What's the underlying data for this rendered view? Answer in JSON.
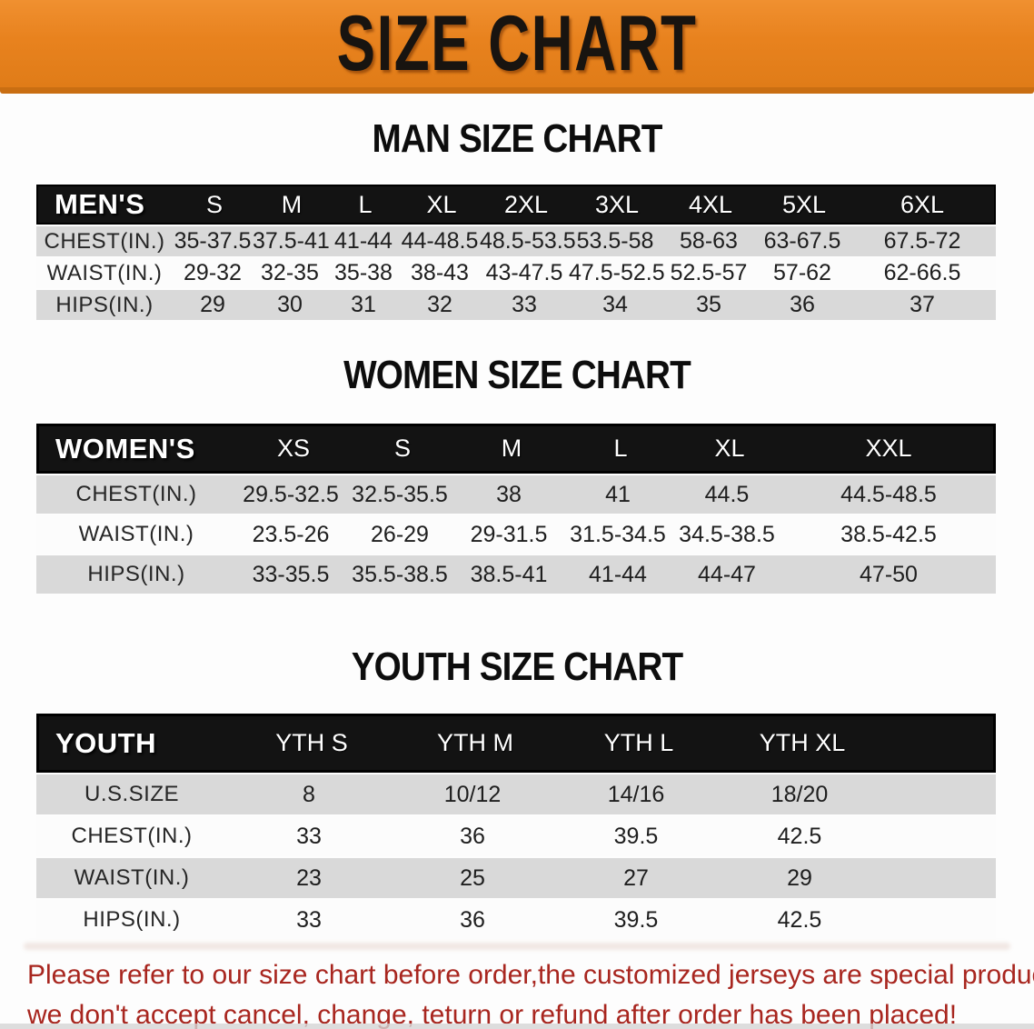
{
  "banner": {
    "title": "SIZE CHART"
  },
  "chart_data": [
    {
      "type": "table",
      "title": "MAN SIZE CHART",
      "header": [
        "MEN'S",
        "S",
        "M",
        "L",
        "XL",
        "2XL",
        "3XL",
        "4XL",
        "5XL",
        "6XL"
      ],
      "rows": [
        [
          "CHEST(IN.)",
          "35-37.5",
          "37.5-41",
          "41-44",
          "44-48.5",
          "48.5-53.5",
          "53.5-58",
          "58-63",
          "63-67.5",
          "67.5-72"
        ],
        [
          "WAIST(IN.)",
          "29-32",
          "32-35",
          "35-38",
          "38-43",
          "43-47.5",
          "47.5-52.5",
          "52.5-57",
          "57-62",
          "62-66.5"
        ],
        [
          "HIPS(IN.)",
          "29",
          "30",
          "31",
          "32",
          "33",
          "34",
          "35",
          "36",
          "37"
        ]
      ]
    },
    {
      "type": "table",
      "title": "WOMEN SIZE CHART",
      "header": [
        "WOMEN'S",
        "XS",
        "S",
        "M",
        "L",
        "XL",
        "XXL"
      ],
      "rows": [
        [
          "CHEST(IN.)",
          "29.5-32.5",
          "32.5-35.5",
          "38",
          "41",
          "44.5",
          "44.5-48.5"
        ],
        [
          "WAIST(IN.)",
          "23.5-26",
          "26-29",
          "29-31.5",
          "31.5-34.5",
          "34.5-38.5",
          "38.5-42.5"
        ],
        [
          "HIPS(IN.)",
          "33-35.5",
          "35.5-38.5",
          "38.5-41",
          "41-44",
          "44-47",
          "47-50"
        ]
      ]
    },
    {
      "type": "table",
      "title": "YOUTH SIZE CHART",
      "header": [
        "YOUTH",
        "YTH S",
        "YTH M",
        "YTH L",
        "YTH XL"
      ],
      "rows": [
        [
          "U.S.SIZE",
          "8",
          "10/12",
          "14/16",
          "18/20"
        ],
        [
          "CHEST(IN.)",
          "33",
          "36",
          "39.5",
          "42.5"
        ],
        [
          "WAIST(IN.)",
          "23",
          "25",
          "27",
          "29"
        ],
        [
          "HIPS(IN.)",
          "33",
          "36",
          "39.5",
          "42.5"
        ]
      ]
    }
  ],
  "disclaimer": {
    "line1": "Please refer to our size chart before order,the customized jerseys are special products,",
    "line2": "we don't accept cancel, change, teturn or refund after order has been placed!"
  },
  "colors": {
    "banner_orange": "#e8821e",
    "banner_edge_orange": "#c96e12",
    "header_band_black": "#131313",
    "row_gray": "#d9d9d9",
    "row_white": "#fcfcfc",
    "disclaimer_red": "#a8261f",
    "title_black": "#111111"
  }
}
